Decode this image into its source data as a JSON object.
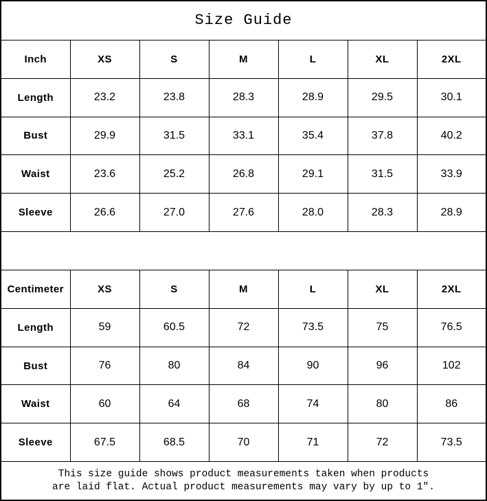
{
  "title": "Size Guide",
  "tables": [
    {
      "unit": "Inch",
      "sizes": [
        "XS",
        "S",
        "M",
        "L",
        "XL",
        "2XL"
      ],
      "rows": [
        {
          "label": "Length",
          "values": [
            "23.2",
            "23.8",
            "28.3",
            "28.9",
            "29.5",
            "30.1"
          ]
        },
        {
          "label": "Bust",
          "values": [
            "29.9",
            "31.5",
            "33.1",
            "35.4",
            "37.8",
            "40.2"
          ]
        },
        {
          "label": "Waist",
          "values": [
            "23.6",
            "25.2",
            "26.8",
            "29.1",
            "31.5",
            "33.9"
          ]
        },
        {
          "label": "Sleeve",
          "values": [
            "26.6",
            "27.0",
            "27.6",
            "28.0",
            "28.3",
            "28.9"
          ]
        }
      ]
    },
    {
      "unit": "Centimeter",
      "sizes": [
        "XS",
        "S",
        "M",
        "L",
        "XL",
        "2XL"
      ],
      "rows": [
        {
          "label": "Length",
          "values": [
            "59",
            "60.5",
            "72",
            "73.5",
            "75",
            "76.5"
          ]
        },
        {
          "label": "Bust",
          "values": [
            "76",
            "80",
            "84",
            "90",
            "96",
            "102"
          ]
        },
        {
          "label": "Waist",
          "values": [
            "60",
            "64",
            "68",
            "74",
            "80",
            "86"
          ]
        },
        {
          "label": "Sleeve",
          "values": [
            "67.5",
            "68.5",
            "70",
            "71",
            "72",
            "73.5"
          ]
        }
      ]
    }
  ],
  "footer": {
    "line1": "This size guide shows product measurements taken when products",
    "line2": "are laid flat. Actual product measurements may vary by up to 1″."
  },
  "colors": {
    "border": "#000000",
    "background": "#ffffff",
    "text": "#000000"
  }
}
